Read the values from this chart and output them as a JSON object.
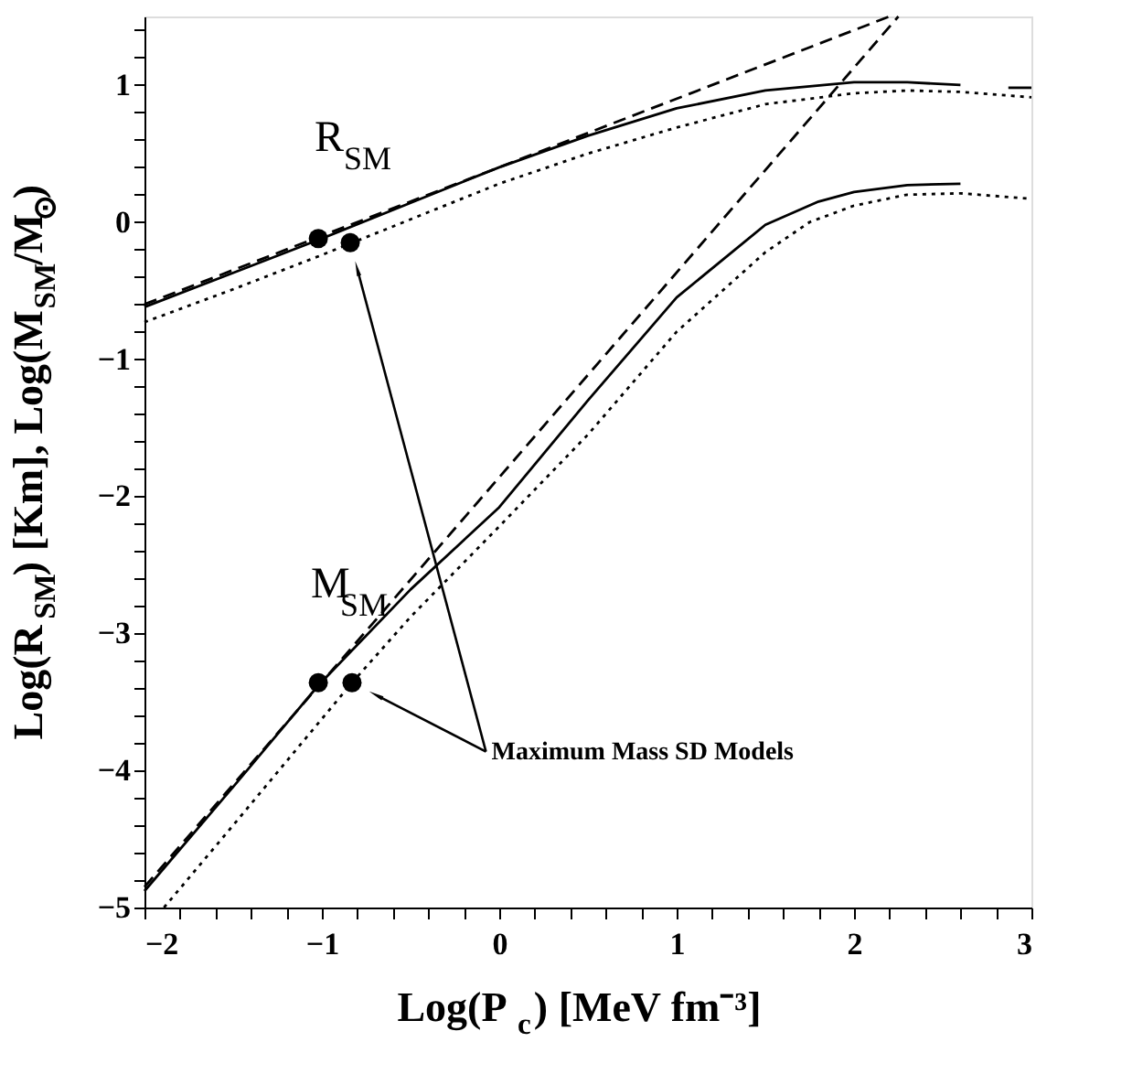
{
  "chart_data": {
    "type": "line",
    "xlabel": "Log(P$_{c}$) [MeV fm⁻³]",
    "ylabel": "Log(R$_{SM}$) [Km], Log(M$_{SM}$/M$_{⊙}$)",
    "xlim": [
      -2,
      3
    ],
    "ylim": [
      -5,
      1.5
    ],
    "xticks": [
      -2,
      {
        "value": -1.8,
        "label": null
      },
      {
        "value": -1.6,
        "label": null
      },
      {
        "value": -1.4,
        "label": null
      },
      {
        "value": -1.2,
        "label": null
      },
      -1,
      {
        "value": -0.8,
        "label": null
      },
      {
        "value": -0.6,
        "label": null
      },
      {
        "value": -0.4,
        "label": null
      },
      {
        "value": -0.2,
        "label": null
      },
      0,
      {
        "value": 0.2,
        "label": null
      },
      {
        "value": 0.4,
        "label": null
      },
      {
        "value": 0.6,
        "label": null
      },
      {
        "value": 0.8,
        "label": null
      },
      1,
      {
        "value": 1.2,
        "label": null
      },
      {
        "value": 1.4,
        "label": null
      },
      {
        "value": 1.6,
        "label": null
      },
      {
        "value": 1.8,
        "label": null
      },
      2,
      {
        "value": 2.2,
        "label": null
      },
      {
        "value": 2.4,
        "label": null
      },
      {
        "value": 2.6,
        "label": null
      },
      {
        "value": 2.8,
        "label": null
      },
      3
    ],
    "yticks": [
      -5,
      {
        "value": -4.8,
        "label": null
      },
      {
        "value": -4.6,
        "label": null
      },
      {
        "value": -4.4,
        "label": null
      },
      {
        "value": -4.2,
        "label": null
      },
      -4,
      {
        "value": -3.8,
        "label": null
      },
      {
        "value": -3.6,
        "label": null
      },
      {
        "value": -3.4,
        "label": null
      },
      {
        "value": -3.2,
        "label": null
      },
      -3,
      {
        "value": -2.8,
        "label": null
      },
      {
        "value": -2.6,
        "label": null
      },
      {
        "value": -2.4,
        "label": null
      },
      {
        "value": -2.2,
        "label": null
      },
      -2,
      {
        "value": -1.8,
        "label": null
      },
      {
        "value": -1.6,
        "label": null
      },
      {
        "value": -1.4,
        "label": null
      },
      {
        "value": -1.2,
        "label": null
      },
      -1,
      {
        "value": -0.8,
        "label": null
      },
      {
        "value": -0.6,
        "label": null
      },
      {
        "value": -0.4,
        "label": null
      },
      {
        "value": -0.2,
        "label": null
      },
      0,
      {
        "value": 0.2,
        "label": null
      },
      {
        "value": 0.4,
        "label": null
      },
      {
        "value": 0.6,
        "label": null
      },
      {
        "value": 0.8,
        "label": null
      },
      1,
      {
        "value": 1.2,
        "label": null
      },
      {
        "value": 1.4,
        "label": null
      }
    ],
    "grid": false,
    "series": [
      {
        "name": "R$_{SM}$",
        "line_style": "solid",
        "color": "#000000",
        "x": [
          -2,
          -1.5,
          -1,
          -0.5,
          0,
          0.5,
          1,
          1.5,
          2,
          2.3,
          2.6
        ],
        "values": [
          -0.62,
          -0.37,
          -0.12,
          0.14,
          0.4,
          0.63,
          0.83,
          0.96,
          1.02,
          1.02,
          1.0
        ]
      },
      {
        "line_style": "solid",
        "color": "#000000",
        "x": [
          2.87,
          3
        ],
        "values": [
          0.98,
          0.98
        ]
      },
      {
        "line_style": "dotted",
        "color": "#000000",
        "x": [
          -2,
          -1.5,
          -1,
          -0.5,
          0,
          0.5,
          1,
          1.5,
          2,
          2.3,
          2.6,
          3
        ],
        "values": [
          -0.73,
          -0.49,
          -0.24,
          0.02,
          0.28,
          0.5,
          0.69,
          0.86,
          0.94,
          0.96,
          0.95,
          0.91
        ]
      },
      {
        "line_style": "dashed",
        "color": "#000000",
        "x": [
          -2,
          2.2
        ],
        "values": [
          -0.6,
          1.5
        ]
      },
      {
        "line_style": "dashed",
        "color": "#000000",
        "x": [
          -2,
          2.25
        ],
        "values": [
          -4.85,
          1.5
        ]
      },
      {
        "name": "M$_{SM}$",
        "line_style": "solid",
        "color": "#000000",
        "x": [
          -2,
          -1.5,
          -1.02,
          -0.5,
          0,
          0.5,
          1,
          1.5,
          1.8,
          2,
          2.3,
          2.6
        ],
        "values": [
          -4.88,
          -4.12,
          -3.38,
          -2.68,
          -2.08,
          -1.3,
          -0.55,
          -0.02,
          0.15,
          0.22,
          0.27,
          0.28
        ]
      },
      {
        "line_style": "dotted",
        "color": "#000000",
        "x": [
          -1.89,
          -1.5,
          -0.83,
          -0.5,
          0,
          0.5,
          1,
          1.5,
          1.75,
          2,
          2.3,
          2.6,
          3
        ],
        "values": [
          -5,
          -4.4,
          -3.36,
          -2.88,
          -2.22,
          -1.55,
          -0.8,
          -0.22,
          0,
          0.12,
          0.2,
          0.21,
          0.17
        ]
      },
      {
        "type": "scatter",
        "marker": "circle",
        "color": "#000000",
        "x": [
          -1.02,
          -0.84,
          -1.02,
          -0.83
        ],
        "values": [
          -0.12,
          -0.15,
          -3.36,
          -3.36
        ]
      }
    ],
    "annotations": [
      "Maximum Mass SD Models"
    ]
  }
}
